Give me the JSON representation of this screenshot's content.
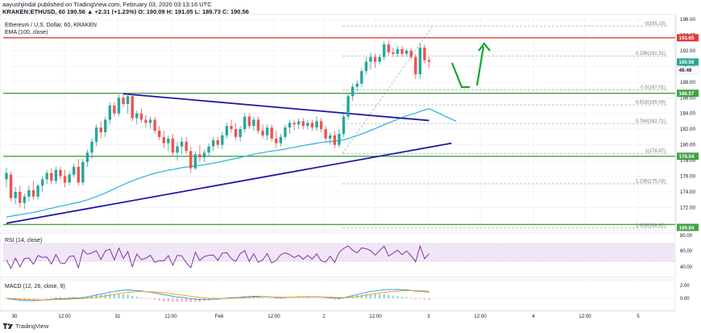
{
  "header": {
    "line1": "aayushjindal published on TradingView.com, February 03, 2020 03:13:16 UTC",
    "line2": "KRAKEN:ETHUSD, 60  190.56  ▲ +2.31 (+1.23%)  O: 190.09  H: 191.05  L: 189.73  C: 190.56"
  },
  "chart_title": "Ethereum / U.S. Dollar, 60, KRAKEN",
  "ema_label": "EMA (100, close)",
  "rsi_label": "RSI (14, close)",
  "macd_label": "MACD (12, 26, close, 9)",
  "footer_brand": "TradingView",
  "colors": {
    "bull": "#26a69a",
    "bear": "#ef5350",
    "ema": "#2ab0e0",
    "trend": "#1a1aa8",
    "resistance": "#e53935",
    "support": "#43a047",
    "fib": "#b0b4bd",
    "arrow": "#12a52a",
    "rsi": "#7b1fa2",
    "macd": "#2196f3",
    "signal": "#ff9800"
  },
  "chart_data": {
    "type": "candlestick",
    "symbol": "KRAKEN:ETHUSD",
    "interval": "60",
    "last_price": 190.56,
    "ylim": [
      169,
      197
    ],
    "y_ticks": [
      172.0,
      174.0,
      176.0,
      178.0,
      180.0,
      182.0,
      184.0,
      186.0,
      188.0,
      190.0,
      192.0,
      194.0,
      196.0
    ],
    "x_ticks": [
      "30",
      "12:00",
      "31",
      "12:00",
      "Feb",
      "12:00",
      "2",
      "12:00",
      "3",
      "12:00",
      "4",
      "12:00",
      "5"
    ],
    "price_labels": [
      {
        "value": "193.65",
        "kind": "resistance"
      },
      {
        "value": "190.56",
        "kind": "price"
      },
      {
        "value": "46:49",
        "kind": "countdown"
      },
      {
        "value": "186.57",
        "kind": "support"
      },
      {
        "value": "178.54",
        "kind": "support"
      },
      {
        "value": "169.84",
        "kind": "support"
      }
    ],
    "horizontal_levels": [
      {
        "price": 193.65,
        "kind": "resistance"
      },
      {
        "price": 186.57,
        "kind": "support"
      },
      {
        "price": 178.54,
        "kind": "support"
      },
      {
        "price": 169.84,
        "kind": "support"
      }
    ],
    "fibonacci": [
      {
        "label": "0(195.15)",
        "price": 195.15
      },
      {
        "label": "0.236(191.31)",
        "price": 191.31
      },
      {
        "label": "0.5(187.01)",
        "price": 187.01
      },
      {
        "label": "0.618(185.09)",
        "price": 185.09
      },
      {
        "label": "0.764(182.71)",
        "price": 182.71
      },
      {
        "label": "1(178.87)",
        "price": 178.87
      },
      {
        "label": "1.236(175.03)",
        "price": 175.03
      },
      {
        "label": "1.618(168.82)",
        "price": 168.82
      }
    ],
    "trendlines": [
      {
        "from": [
          0,
          170.0
        ],
        "to": [
          99,
          180.2
        ]
      },
      {
        "from": [
          26,
          186.5
        ],
        "to": [
          94,
          183.1
        ]
      }
    ],
    "candles": [
      [
        0,
        175.6,
        177.1,
        174.6,
        176.4
      ],
      [
        1,
        176.2,
        176.6,
        172.8,
        173.2
      ],
      [
        2,
        173.2,
        174.6,
        172.4,
        174.0
      ],
      [
        3,
        174.0,
        174.8,
        172.0,
        172.6
      ],
      [
        4,
        172.6,
        173.8,
        171.8,
        173.4
      ],
      [
        5,
        173.4,
        174.8,
        172.8,
        174.2
      ],
      [
        6,
        174.2,
        175.4,
        173.0,
        173.4
      ],
      [
        7,
        173.4,
        175.0,
        173.0,
        174.8
      ],
      [
        8,
        174.8,
        176.0,
        174.0,
        175.6
      ],
      [
        9,
        175.6,
        176.8,
        175.0,
        176.4
      ],
      [
        10,
        176.4,
        177.0,
        175.0,
        175.4
      ],
      [
        11,
        175.4,
        177.2,
        175.0,
        176.8
      ],
      [
        12,
        176.8,
        177.2,
        175.6,
        176.0
      ],
      [
        13,
        176.0,
        176.8,
        174.6,
        175.2
      ],
      [
        14,
        175.2,
        176.6,
        174.8,
        176.2
      ],
      [
        15,
        176.2,
        177.6,
        175.8,
        177.2
      ],
      [
        16,
        177.2,
        178.2,
        174.8,
        175.2
      ],
      [
        17,
        175.2,
        178.2,
        174.8,
        177.8
      ],
      [
        18,
        177.8,
        179.4,
        177.2,
        179.0
      ],
      [
        19,
        179.0,
        180.8,
        178.2,
        180.4
      ],
      [
        20,
        180.4,
        182.6,
        179.8,
        182.2
      ],
      [
        21,
        182.2,
        183.0,
        180.8,
        181.6
      ],
      [
        22,
        181.6,
        183.6,
        181.0,
        183.2
      ],
      [
        23,
        183.2,
        185.4,
        182.6,
        185.0
      ],
      [
        24,
        185.0,
        185.4,
        183.6,
        184.0
      ],
      [
        25,
        184.0,
        186.4,
        183.6,
        186.0
      ],
      [
        26,
        186.0,
        186.6,
        184.8,
        185.2
      ],
      [
        27,
        185.2,
        186.6,
        184.0,
        186.2
      ],
      [
        28,
        186.2,
        186.6,
        183.0,
        183.4
      ],
      [
        29,
        183.4,
        184.4,
        182.6,
        184.0
      ],
      [
        30,
        184.0,
        184.6,
        182.8,
        183.2
      ],
      [
        31,
        183.2,
        183.8,
        182.2,
        182.8
      ],
      [
        32,
        182.8,
        183.6,
        182.0,
        183.2
      ],
      [
        33,
        183.2,
        183.6,
        181.4,
        181.8
      ],
      [
        34,
        181.8,
        182.4,
        180.6,
        181.0
      ],
      [
        35,
        181.0,
        181.8,
        179.6,
        180.2
      ],
      [
        36,
        180.2,
        181.2,
        179.2,
        180.8
      ],
      [
        37,
        180.8,
        181.4,
        178.6,
        179.0
      ],
      [
        38,
        179.0,
        180.4,
        178.0,
        179.8
      ],
      [
        39,
        179.8,
        181.0,
        178.8,
        180.4
      ],
      [
        40,
        180.4,
        181.0,
        178.8,
        179.2
      ],
      [
        41,
        179.2,
        179.8,
        176.4,
        177.0
      ],
      [
        42,
        177.0,
        179.2,
        176.8,
        178.8
      ],
      [
        43,
        178.8,
        180.0,
        177.8,
        178.4
      ],
      [
        44,
        178.4,
        179.4,
        177.8,
        179.0
      ],
      [
        45,
        179.0,
        180.2,
        178.6,
        179.8
      ],
      [
        46,
        179.8,
        181.0,
        179.2,
        180.6
      ],
      [
        47,
        180.6,
        181.0,
        179.6,
        180.0
      ],
      [
        48,
        180.0,
        181.6,
        179.4,
        181.2
      ],
      [
        49,
        181.2,
        182.8,
        180.8,
        182.4
      ],
      [
        50,
        182.4,
        183.2,
        181.6,
        182.0
      ],
      [
        51,
        182.0,
        182.8,
        180.6,
        181.0
      ],
      [
        52,
        181.0,
        182.4,
        180.4,
        182.0
      ],
      [
        53,
        182.0,
        184.0,
        181.6,
        183.6
      ],
      [
        54,
        183.6,
        184.0,
        182.0,
        182.4
      ],
      [
        55,
        182.4,
        183.6,
        181.8,
        183.2
      ],
      [
        56,
        183.2,
        183.6,
        181.4,
        181.8
      ],
      [
        57,
        181.8,
        182.6,
        180.8,
        181.2
      ],
      [
        58,
        181.2,
        182.6,
        180.6,
        182.2
      ],
      [
        59,
        182.2,
        182.6,
        180.4,
        180.8
      ],
      [
        60,
        180.8,
        181.8,
        179.6,
        180.2
      ],
      [
        61,
        180.2,
        181.4,
        179.8,
        181.0
      ],
      [
        62,
        181.0,
        182.6,
        180.6,
        182.2
      ],
      [
        63,
        182.2,
        183.2,
        181.4,
        182.8
      ],
      [
        64,
        182.8,
        183.2,
        181.8,
        182.6
      ],
      [
        65,
        182.6,
        183.4,
        182.0,
        183.0
      ],
      [
        66,
        183.0,
        183.4,
        182.0,
        182.4
      ],
      [
        67,
        182.4,
        183.2,
        182.0,
        182.8
      ],
      [
        68,
        182.8,
        183.2,
        181.8,
        182.2
      ],
      [
        69,
        182.2,
        183.6,
        181.8,
        183.0
      ],
      [
        70,
        183.0,
        183.4,
        181.6,
        182.0
      ],
      [
        71,
        182.0,
        182.4,
        180.4,
        180.8
      ],
      [
        72,
        180.8,
        181.6,
        180.0,
        181.2
      ],
      [
        73,
        181.2,
        181.8,
        179.6,
        180.0
      ],
      [
        74,
        180.0,
        182.0,
        179.6,
        181.4
      ],
      [
        75,
        181.4,
        184.0,
        181.0,
        183.6
      ],
      [
        76,
        183.6,
        186.6,
        183.2,
        186.2
      ],
      [
        77,
        186.2,
        187.8,
        185.6,
        187.4
      ],
      [
        78,
        187.4,
        188.2,
        186.8,
        187.8
      ],
      [
        79,
        187.8,
        189.8,
        187.4,
        189.4
      ],
      [
        80,
        189.4,
        191.2,
        189.0,
        190.6
      ],
      [
        81,
        190.6,
        191.8,
        189.6,
        191.2
      ],
      [
        82,
        191.2,
        191.6,
        189.8,
        190.6
      ],
      [
        83,
        190.6,
        191.6,
        190.2,
        191.2
      ],
      [
        84,
        191.2,
        193.2,
        190.8,
        192.8
      ],
      [
        85,
        192.8,
        193.2,
        191.4,
        191.8
      ],
      [
        86,
        191.8,
        192.4,
        191.2,
        191.6
      ],
      [
        87,
        191.6,
        192.6,
        191.2,
        192.2
      ],
      [
        88,
        192.2,
        192.6,
        191.2,
        191.6
      ],
      [
        89,
        191.6,
        192.2,
        191.2,
        192.0
      ],
      [
        90,
        192.0,
        192.4,
        190.8,
        191.2
      ],
      [
        91,
        191.2,
        191.6,
        188.4,
        189.0
      ],
      [
        92,
        189.0,
        193.0,
        188.4,
        192.4
      ],
      [
        93,
        192.4,
        192.8,
        190.4,
        190.8
      ],
      [
        94,
        190.8,
        191.2,
        189.8,
        190.6
      ]
    ]
  }
}
